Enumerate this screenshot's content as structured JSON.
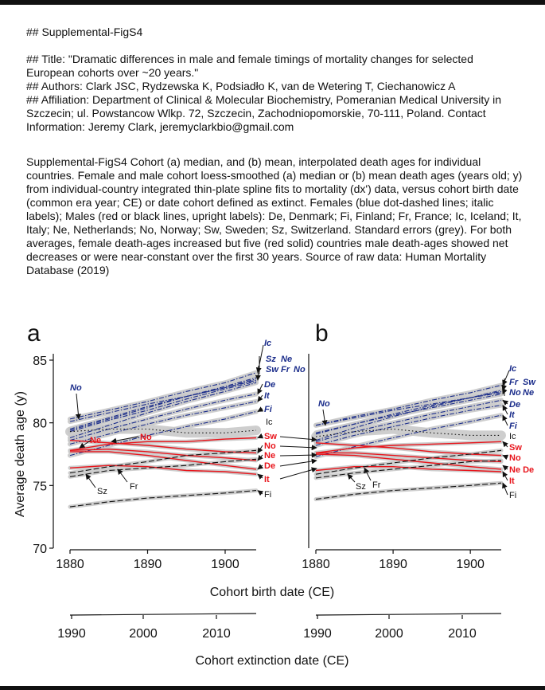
{
  "header": {
    "line_figure": "## Supplemental-FigS4",
    "line_title": "## Title: \"Dramatic differences in male and female timings of mortality changes for selected European cohorts over ~20 years.\"",
    "line_authors": "## Authors: Clark JSC, Rydzewska K, Podsiadło K, van de Wetering T, Ciechanowicz A",
    "line_affiliation": "## Affiliation: Department of Clinical & Molecular Biochemistry, Pomeranian Medical University in Szczecin; ul. Powstancow Wlkp. 72, Szczecin, Zachodniopomorskie, 70-111, Poland. Contact Information: Jeremy Clark, jeremyclarkbio@gmail.com"
  },
  "caption": "Supplemental-FigS4 Cohort (a) median, and (b) mean, interpolated death ages for individual countries. Female and male cohort loess-smoothed (a) median or (b) mean death ages (years old; y) from individual-country integrated thin-plate spline fits to mortality (dx') data, versus cohort birth date (common era year; CE) or date cohort defined as extinct. Females (blue dot-dashed lines; italic labels); Males (red or black lines, upright labels): De, Denmark; Fi, Finland; Fr, France; Ic, Iceland; It, Italy; Ne, Netherlands; No, Norway; Sw, Sweden; Sz, Switzerland. Standard errors (grey). For both averages, female death-ages increased but five (red solid) countries male death-ages showed net decreases or were near-constant over the first 30 years. Source of raw data: Human Mortality Database (2019)",
  "colors": {
    "female": "#1a2c8a",
    "male_red": "#e8141b",
    "male_black": "#111111",
    "se_band": "#c9c9c9"
  },
  "chart_data": [
    {
      "type": "line",
      "panel_label": "a",
      "statistic": "median",
      "ylabel": "Average  death  age  (y)",
      "xlabel": "Cohort  birth  date  (CE)",
      "x2label": "Cohort  extinction  date  (CE)",
      "xlim": [
        1879,
        1905
      ],
      "ylim": [
        70,
        85
      ],
      "x_ticks": [
        "1880",
        "1890",
        "1900"
      ],
      "y_ticks": [
        "70",
        "75",
        "80",
        "85"
      ],
      "x2_ticks": [
        "1990",
        "2000",
        "2010"
      ],
      "x": [
        1880,
        1885,
        1890,
        1895,
        1900,
        1904
      ],
      "female_series": [
        {
          "name": "Ic",
          "values": [
            80.3,
            81.0,
            81.7,
            82.5,
            83.2,
            84.0
          ]
        },
        {
          "name": "Sz",
          "values": [
            79.4,
            80.3,
            81.2,
            82.1,
            82.9,
            83.6
          ]
        },
        {
          "name": "Ne",
          "values": [
            79.5,
            80.4,
            81.3,
            82.1,
            82.8,
            83.5
          ]
        },
        {
          "name": "Sw",
          "values": [
            79.3,
            80.2,
            81.0,
            81.9,
            82.7,
            83.3
          ]
        },
        {
          "name": "Fr",
          "values": [
            78.8,
            79.8,
            80.8,
            81.7,
            82.5,
            83.2
          ]
        },
        {
          "name": "No",
          "values": [
            80.1,
            80.8,
            81.5,
            82.1,
            82.8,
            83.4
          ]
        },
        {
          "name": "De",
          "values": [
            78.6,
            79.5,
            80.3,
            81.1,
            81.8,
            82.3
          ]
        },
        {
          "name": "It",
          "values": [
            78.3,
            79.1,
            79.9,
            80.6,
            81.2,
            81.7
          ]
        },
        {
          "name": "Fi",
          "values": [
            77.4,
            78.2,
            79.0,
            79.7,
            80.3,
            80.9
          ]
        }
      ],
      "male_series": [
        {
          "name": "Ic",
          "values": [
            79.3,
            79.5,
            79.5,
            79.2,
            79.2,
            79.4
          ]
        },
        {
          "name": "Sw",
          "values": [
            77.8,
            78.3,
            78.5,
            78.5,
            78.7,
            78.8
          ]
        },
        {
          "name": "No",
          "values": [
            78.6,
            78.4,
            78.2,
            77.9,
            77.7,
            77.6
          ]
        },
        {
          "name": "Ne",
          "values": [
            77.8,
            77.9,
            77.7,
            77.4,
            77.2,
            77.0
          ]
        },
        {
          "name": "De",
          "values": [
            77.7,
            77.7,
            77.4,
            77.0,
            76.6,
            76.3
          ]
        },
        {
          "name": "It",
          "values": [
            76.4,
            76.6,
            76.5,
            76.2,
            76.1,
            75.9
          ]
        },
        {
          "name": "Fr",
          "values": [
            76.0,
            76.5,
            76.9,
            77.4,
            77.6,
            77.8
          ]
        },
        {
          "name": "Sz",
          "values": [
            75.7,
            76.2,
            76.4,
            76.6,
            76.9,
            77.1
          ]
        },
        {
          "name": "Fi",
          "values": [
            73.3,
            73.7,
            74.0,
            74.2,
            74.4,
            74.6
          ]
        }
      ],
      "labels": {
        "Ic_f": "Ic",
        "Sz_f": "Sz",
        "Ne_f": "Ne",
        "Sw_f": "Sw",
        "Fr_f": "Fr",
        "No_f": "No",
        "De_f": "De",
        "It_f": "It",
        "Fi_f": "Fi",
        "No_f_left": "No",
        "Ic_m": "Ic",
        "Sw_m": "Sw",
        "No_m": "No",
        "Ne_m": "Ne",
        "De_m": "De",
        "It_m": "It",
        "Fi_m": "Fi",
        "Sz_m_left": "Sz",
        "Fr_m_left": "Fr",
        "Ne_m_left": "Ne",
        "No_m_left": "No"
      }
    },
    {
      "type": "line",
      "panel_label": "b",
      "statistic": "mean",
      "xlim": [
        1879,
        1905
      ],
      "ylim": [
        70,
        85
      ],
      "x_ticks": [
        "1880",
        "1890",
        "1900"
      ],
      "x2_ticks": [
        "1990",
        "2000",
        "2010"
      ],
      "x": [
        1880,
        1885,
        1890,
        1895,
        1900,
        1904
      ],
      "female_series": [
        {
          "name": "Ic",
          "values": [
            79.8,
            80.5,
            81.1,
            81.8,
            82.4,
            83.0
          ]
        },
        {
          "name": "Fr",
          "values": [
            78.6,
            79.6,
            80.5,
            81.3,
            82.0,
            82.6
          ]
        },
        {
          "name": "Sw",
          "values": [
            79.1,
            79.9,
            80.7,
            81.4,
            82.0,
            82.5
          ]
        },
        {
          "name": "No",
          "values": [
            79.8,
            80.4,
            81.0,
            81.5,
            82.0,
            82.4
          ]
        },
        {
          "name": "Ne",
          "values": [
            79.2,
            79.9,
            80.6,
            81.2,
            81.8,
            82.3
          ]
        },
        {
          "name": "De",
          "values": [
            78.5,
            79.3,
            80.0,
            80.7,
            81.3,
            81.8
          ]
        },
        {
          "name": "It",
          "values": [
            78.2,
            79.0,
            79.7,
            80.4,
            81.0,
            81.4
          ]
        },
        {
          "name": "Fi",
          "values": [
            77.3,
            78.1,
            78.8,
            79.5,
            80.1,
            80.6
          ]
        }
      ],
      "male_series": [
        {
          "name": "Ic",
          "values": [
            78.9,
            79.3,
            79.5,
            79.2,
            79.0,
            79.0
          ]
        },
        {
          "name": "Sw",
          "values": [
            77.6,
            78.0,
            78.2,
            78.3,
            78.4,
            78.5
          ]
        },
        {
          "name": "No",
          "values": [
            78.4,
            78.2,
            78.0,
            77.7,
            77.5,
            77.4
          ]
        },
        {
          "name": "Ne",
          "values": [
            77.6,
            77.6,
            77.4,
            77.2,
            77.0,
            76.9
          ]
        },
        {
          "name": "De",
          "values": [
            77.5,
            77.4,
            77.1,
            76.8,
            76.5,
            76.3
          ]
        },
        {
          "name": "It",
          "values": [
            76.2,
            76.5,
            76.5,
            76.3,
            76.2,
            76.1
          ]
        },
        {
          "name": "Fr",
          "values": [
            75.9,
            76.4,
            76.8,
            77.2,
            77.5,
            77.8
          ]
        },
        {
          "name": "Sz",
          "values": [
            75.6,
            76.0,
            76.3,
            76.6,
            76.9,
            77.0
          ]
        },
        {
          "name": "Fi",
          "values": [
            73.9,
            74.3,
            74.6,
            74.8,
            75.0,
            75.2
          ]
        }
      ],
      "labels": {
        "Ic_f": "Ic",
        "Fr_f": "Fr",
        "Sw_f": "Sw",
        "No_f": "No",
        "Ne_f": "Ne",
        "De_f": "De",
        "It_f": "It",
        "Fi_f": "Fi",
        "No_f_left": "No",
        "Ic_m": "Ic",
        "Sw_m": "Sw",
        "No_m": "No",
        "Ne_m": "Ne",
        "De_m": "De",
        "It_m": "It",
        "Fi_m": "Fi",
        "Sz_m_left": "Sz",
        "Fr_m_left": "Fr"
      }
    }
  ]
}
